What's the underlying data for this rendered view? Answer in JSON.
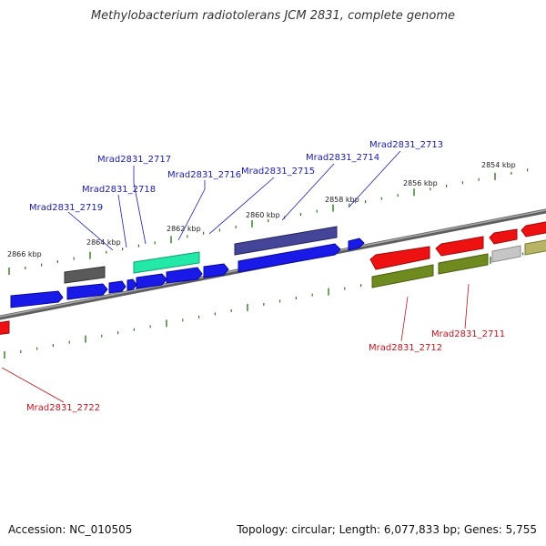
{
  "title": "Methylobacterium radiotolerans JCM 2831, complete genome",
  "footer": {
    "accession": "Accession: NC_010505",
    "summary": "Topology: circular; Length: 6,077,833 bp; Genes: 5,755"
  },
  "colors": {
    "backbone": "#7f7f7f",
    "tick": "#2f7a1f",
    "blue": "#1010e0",
    "red": "#e81010",
    "olive": "#6f8a1e",
    "gray": "#5a5a5a",
    "teal": "#22e0a0",
    "purple": "#3f3f8f",
    "silver": "#c6c6c6",
    "khaki": "#b8b466",
    "label_blue": "#1a1ab4",
    "label_red": "#c8141e"
  },
  "kbp_labels": [
    "2866 kbp",
    "2864 kbp",
    "2862 kbp",
    "2860 kbp",
    "2858 kbp",
    "2856 kbp",
    "2854 kbp"
  ],
  "gene_labels": [
    {
      "name": "Mrad2831_2713",
      "color": "blue"
    },
    {
      "name": "Mrad2831_2714",
      "color": "blue"
    },
    {
      "name": "Mrad2831_2715",
      "color": "blue"
    },
    {
      "name": "Mrad2831_2716",
      "color": "blue"
    },
    {
      "name": "Mrad2831_2717",
      "color": "blue"
    },
    {
      "name": "Mrad2831_2718",
      "color": "blue"
    },
    {
      "name": "Mrad2831_2719",
      "color": "blue"
    },
    {
      "name": "Mrad2831_2712",
      "color": "red"
    },
    {
      "name": "Mrad2831_2711",
      "color": "red"
    },
    {
      "name": "Mrad2831_2722",
      "color": "red"
    }
  ]
}
